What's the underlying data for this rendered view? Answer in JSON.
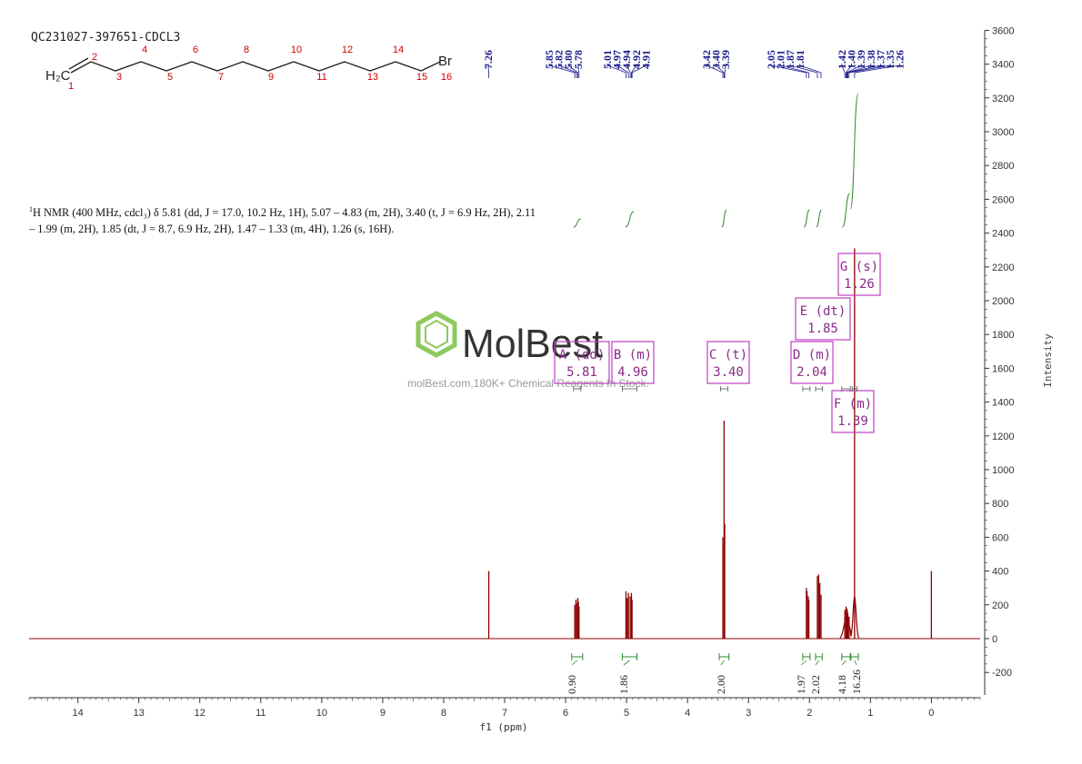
{
  "sample_id": "QC231027-397651-CDCL3",
  "structure": {
    "start_group": "H₂C",
    "end_group": "Br",
    "atom_numbers": [
      "1",
      "2",
      "3",
      "4",
      "5",
      "6",
      "7",
      "8",
      "9",
      "10",
      "11",
      "12",
      "13",
      "14",
      "15",
      "16"
    ]
  },
  "nmr_summary": {
    "nucleus_sup": "1",
    "text": "H NMR (400 MHz, cdcl₃) δ 5.81 (dd, J = 17.0, 10.2 Hz, 1H), 5.07 – 4.83 (m, 2H), 3.40 (t, J = 6.9 Hz, 2H), 2.11 – 1.99 (m, 2H), 1.85 (dt, J = 8.7, 6.9 Hz, 2H), 1.47 – 1.33 (m, 4H), 1.26 (s, 16H)."
  },
  "watermark": {
    "brand": "MolBest",
    "tagline": "molBest.com,180K+ Chemical Reagents In Stock."
  },
  "colors": {
    "spectrum": "#8b0000",
    "peak_labels": "#1a1a8c",
    "integrals": "#2e8b2e",
    "multiplet_boxes": "#c040c0",
    "axes": "#333333"
  },
  "chart_data": {
    "type": "line",
    "xlabel": "f1 (ppm)",
    "ylabel": "Intensity",
    "xlim": [
      14.8,
      -0.8
    ],
    "ylim": [
      -300,
      3600
    ],
    "x_reversed": true,
    "x_ticks": [
      "14",
      "13",
      "12",
      "11",
      "10",
      "9",
      "8",
      "7",
      "6",
      "5",
      "4",
      "3",
      "2",
      "1",
      "0"
    ],
    "y_ticks": [
      "-200",
      "0",
      "200",
      "400",
      "600",
      "800",
      "1000",
      "1200",
      "1400",
      "1600",
      "1800",
      "2000",
      "2200",
      "2400",
      "2600",
      "2800",
      "3000",
      "3200",
      "3400",
      "3600"
    ],
    "peak_labels": [
      {
        "text": "7.26",
        "ppm": 7.26
      },
      {
        "text": "5.85",
        "ppm": 5.85
      },
      {
        "text": "5.82",
        "ppm": 5.82
      },
      {
        "text": "5.80",
        "ppm": 5.8
      },
      {
        "text": "5.78",
        "ppm": 5.78
      },
      {
        "text": "5.01",
        "ppm": 5.01
      },
      {
        "text": "4.97",
        "ppm": 4.97
      },
      {
        "text": "4.94",
        "ppm": 4.94
      },
      {
        "text": "4.92",
        "ppm": 4.92
      },
      {
        "text": "4.91",
        "ppm": 4.91
      },
      {
        "text": "3.42",
        "ppm": 3.42
      },
      {
        "text": "3.40",
        "ppm": 3.4
      },
      {
        "text": "3.39",
        "ppm": 3.39
      },
      {
        "text": "2.05",
        "ppm": 2.05
      },
      {
        "text": "2.01",
        "ppm": 2.01
      },
      {
        "text": "1.87",
        "ppm": 1.87
      },
      {
        "text": "1.81",
        "ppm": 1.81
      },
      {
        "text": "1.42",
        "ppm": 1.42
      },
      {
        "text": "1.40",
        "ppm": 1.4
      },
      {
        "text": "1.39",
        "ppm": 1.39
      },
      {
        "text": "1.38",
        "ppm": 1.38
      },
      {
        "text": "1.37",
        "ppm": 1.37
      },
      {
        "text": "1.35",
        "ppm": 1.35
      },
      {
        "text": "1.26",
        "ppm": 1.26
      }
    ],
    "peaks": [
      {
        "ppm": 7.26,
        "height": 400
      },
      {
        "ppm": 5.85,
        "height": 200
      },
      {
        "ppm": 5.83,
        "height": 230
      },
      {
        "ppm": 5.82,
        "height": 210
      },
      {
        "ppm": 5.8,
        "height": 240
      },
      {
        "ppm": 5.79,
        "height": 220
      },
      {
        "ppm": 5.78,
        "height": 190
      },
      {
        "ppm": 5.01,
        "height": 280
      },
      {
        "ppm": 4.99,
        "height": 240
      },
      {
        "ppm": 4.97,
        "height": 270
      },
      {
        "ppm": 4.94,
        "height": 250
      },
      {
        "ppm": 4.92,
        "height": 270
      },
      {
        "ppm": 4.91,
        "height": 230
      },
      {
        "ppm": 3.42,
        "height": 600
      },
      {
        "ppm": 3.4,
        "height": 1290
      },
      {
        "ppm": 3.39,
        "height": 680
      },
      {
        "ppm": 2.05,
        "height": 300
      },
      {
        "ppm": 2.04,
        "height": 280
      },
      {
        "ppm": 2.02,
        "height": 250
      },
      {
        "ppm": 2.01,
        "height": 230
      },
      {
        "ppm": 1.87,
        "height": 370
      },
      {
        "ppm": 1.85,
        "height": 380
      },
      {
        "ppm": 1.83,
        "height": 330
      },
      {
        "ppm": 1.81,
        "height": 260
      },
      {
        "ppm": 1.42,
        "height": 170
      },
      {
        "ppm": 1.4,
        "height": 190
      },
      {
        "ppm": 1.39,
        "height": 180
      },
      {
        "ppm": 1.38,
        "height": 170
      },
      {
        "ppm": 1.37,
        "height": 150
      },
      {
        "ppm": 1.35,
        "height": 130
      },
      {
        "ppm": 1.26,
        "height": 2310
      },
      {
        "ppm": 0.0,
        "height": 400
      }
    ],
    "multiplets": [
      {
        "letter": "A",
        "type": "dd",
        "shift": "5.81",
        "from": 5.87,
        "to": 5.75
      },
      {
        "letter": "B",
        "type": "m",
        "shift": "4.96",
        "from": 5.07,
        "to": 4.83
      },
      {
        "letter": "C",
        "type": "t",
        "shift": "3.40",
        "from": 3.46,
        "to": 3.34
      },
      {
        "letter": "D",
        "type": "m",
        "shift": "2.04",
        "from": 2.11,
        "to": 1.99
      },
      {
        "letter": "E",
        "type": "dt",
        "shift": "1.85",
        "from": 1.9,
        "to": 1.79
      },
      {
        "letter": "F",
        "type": "m",
        "shift": "1.39",
        "from": 1.47,
        "to": 1.33
      },
      {
        "letter": "G",
        "type": "s",
        "shift": "1.26",
        "from": 1.3,
        "to": 1.22
      }
    ],
    "integrals": [
      {
        "value": "0.90",
        "from": 5.9,
        "to": 5.72
      },
      {
        "value": "1.86",
        "from": 5.07,
        "to": 4.83
      },
      {
        "value": "2.00",
        "from": 3.48,
        "to": 3.32
      },
      {
        "value": "1.97",
        "from": 2.11,
        "to": 1.99
      },
      {
        "value": "2.02",
        "from": 1.9,
        "to": 1.79
      },
      {
        "value": "4.18",
        "from": 1.47,
        "to": 1.33
      },
      {
        "value": "16.26",
        "from": 1.32,
        "to": 1.2
      }
    ]
  }
}
